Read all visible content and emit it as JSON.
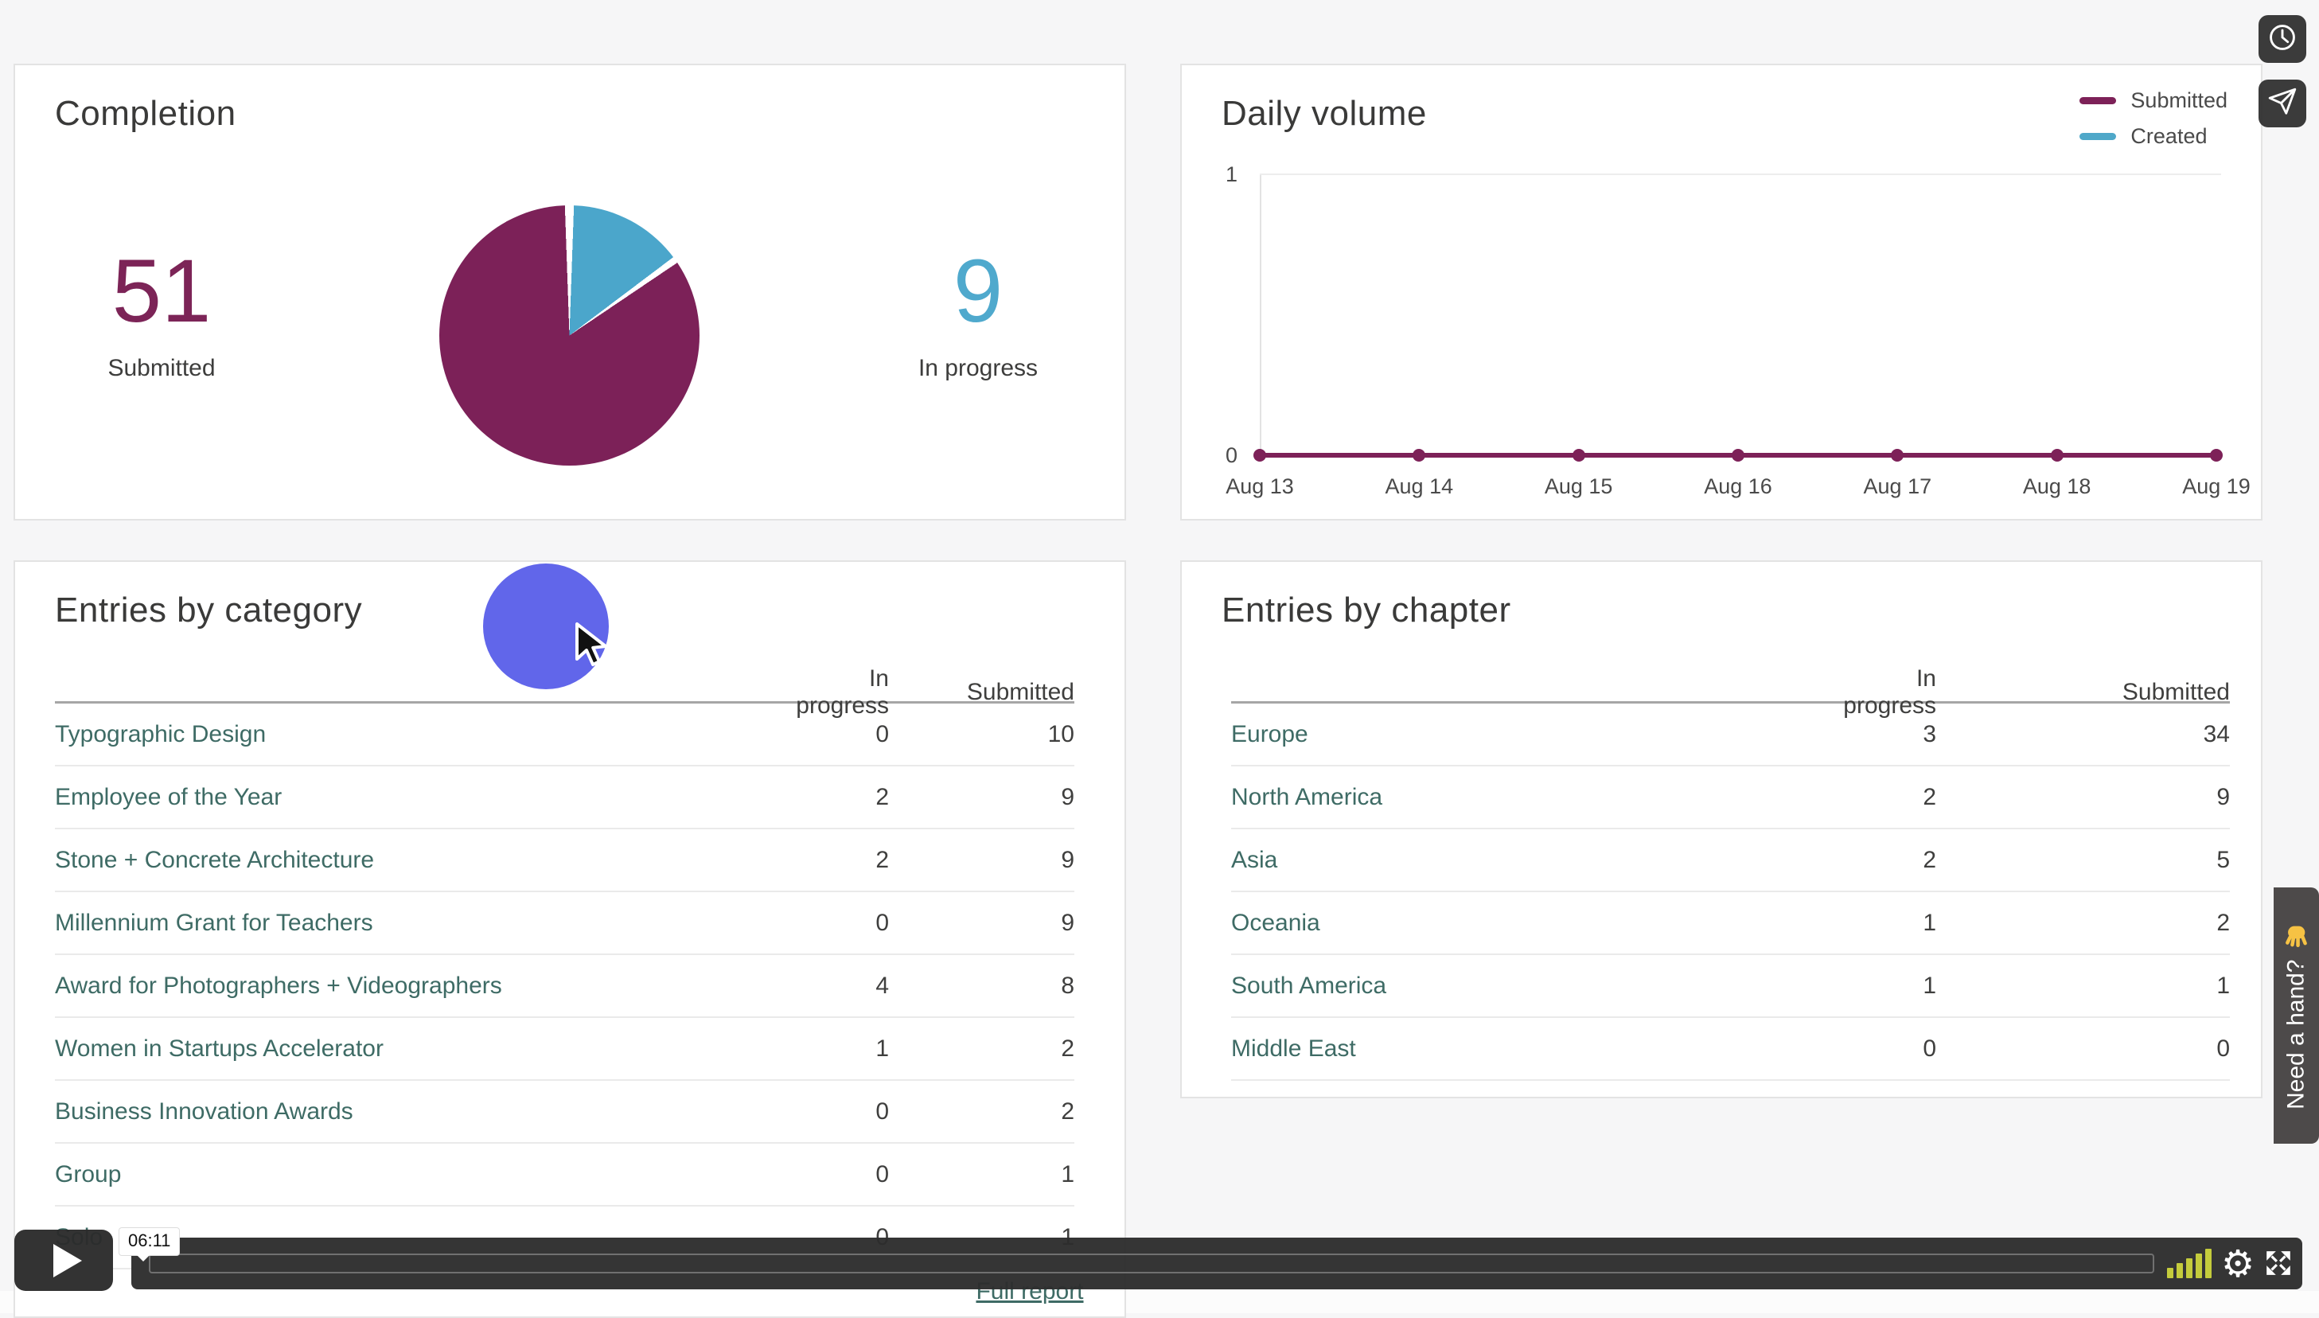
{
  "completion": {
    "title": "Completion",
    "submitted_value": "51",
    "submitted_label": "Submitted",
    "inprogress_value": "9",
    "inprogress_label": "In progress"
  },
  "daily_volume": {
    "title": "Daily volume"
  },
  "chart_data": [
    {
      "type": "pie",
      "title": "Completion",
      "labels": [
        "Submitted",
        "In progress"
      ],
      "values": [
        51,
        9
      ],
      "colors": [
        "#7c2158",
        "#4ba6cb"
      ]
    },
    {
      "type": "line",
      "title": "Daily volume",
      "x": [
        "Aug 13",
        "Aug 14",
        "Aug 15",
        "Aug 16",
        "Aug 17",
        "Aug 18",
        "Aug 19"
      ],
      "series": [
        {
          "name": "Submitted",
          "color": "#7d2158",
          "values": [
            0,
            0,
            0,
            0,
            0,
            0,
            0
          ]
        },
        {
          "name": "Created",
          "color": "#4fa8c9",
          "values": [
            0,
            0,
            0,
            0,
            0,
            0,
            0
          ]
        }
      ],
      "ylim": [
        0,
        1
      ],
      "yticks": [
        "0",
        "1"
      ],
      "legend_position": "top-right",
      "grid": "top-line-only"
    }
  ],
  "entries_by_category": {
    "title": "Entries by category",
    "columns": [
      "In progress",
      "Submitted"
    ],
    "rows": [
      {
        "name": "Typographic Design",
        "in_progress": "0",
        "submitted": "10"
      },
      {
        "name": "Employee of the Year",
        "in_progress": "2",
        "submitted": "9"
      },
      {
        "name": "Stone + Concrete Architecture",
        "in_progress": "2",
        "submitted": "9"
      },
      {
        "name": "Millennium Grant for Teachers",
        "in_progress": "0",
        "submitted": "9"
      },
      {
        "name": "Award for Photographers + Videographers",
        "in_progress": "4",
        "submitted": "8"
      },
      {
        "name": "Women in Startups Accelerator",
        "in_progress": "1",
        "submitted": "2"
      },
      {
        "name": "Business Innovation Awards",
        "in_progress": "0",
        "submitted": "2"
      },
      {
        "name": "Group",
        "in_progress": "0",
        "submitted": "1"
      },
      {
        "name": "Solo",
        "in_progress": "0",
        "submitted": "1"
      }
    ],
    "footer_link": "Full report"
  },
  "entries_by_chapter": {
    "title": "Entries by chapter",
    "columns": [
      "In progress",
      "Submitted"
    ],
    "rows": [
      {
        "name": "Europe",
        "in_progress": "3",
        "submitted": "34"
      },
      {
        "name": "North America",
        "in_progress": "2",
        "submitted": "9"
      },
      {
        "name": "Asia",
        "in_progress": "2",
        "submitted": "5"
      },
      {
        "name": "Oceania",
        "in_progress": "1",
        "submitted": "2"
      },
      {
        "name": "South America",
        "in_progress": "1",
        "submitted": "1"
      },
      {
        "name": "Middle East",
        "in_progress": "0",
        "submitted": "0"
      }
    ]
  },
  "player": {
    "time_tooltip": "06:11",
    "icons": [
      "play-icon",
      "seek-track",
      "volume-bars-icon",
      "gear-icon",
      "fullscreen-icon"
    ],
    "volume_bar_color": "#c4cc3c"
  },
  "side_buttons": {
    "icons": [
      "clock-icon",
      "send-icon"
    ]
  },
  "help_tab": {
    "label": "Need a hand?",
    "icon": "wave-hand-icon"
  },
  "colors": {
    "submitted_accent": "#7c2158",
    "created_accent": "#4ba6cb",
    "link_teal": "#3e6b65",
    "click_highlight": "#585ee9",
    "player_dark": "#2d2d2d"
  }
}
